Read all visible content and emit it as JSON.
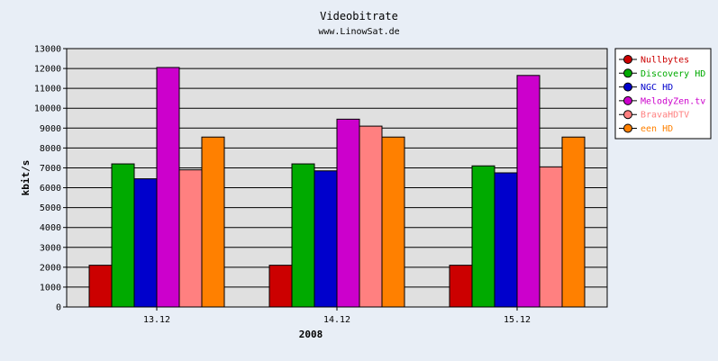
{
  "chart_data": {
    "type": "bar",
    "title": "Videobitrate",
    "subtitle": "www.LinowSat.de",
    "xlabel": "2008",
    "ylabel": "kbit/s",
    "ylim": [
      0,
      13000
    ],
    "ytick_step": 1000,
    "categories": [
      "13.12",
      "14.12",
      "15.12"
    ],
    "grid": true,
    "legend_position": "top-right",
    "series": [
      {
        "name": "Nullbytes",
        "color": "#cc0000",
        "label_color": "#cc0000",
        "values": [
          2100,
          2100,
          2100
        ]
      },
      {
        "name": "Discovery HD",
        "color": "#00aa00",
        "label_color": "#00aa00",
        "values": [
          7200,
          7200,
          7100
        ]
      },
      {
        "name": "NGC HD",
        "color": "#0000cc",
        "label_color": "#0000cc",
        "values": [
          6450,
          6850,
          6750
        ]
      },
      {
        "name": "MelodyZen.tv",
        "color": "#cc00cc",
        "label_color": "#cc00cc",
        "values": [
          12050,
          9450,
          11650
        ]
      },
      {
        "name": "BravaHDTV",
        "color": "#ff8080",
        "label_color": "#ff8080",
        "values": [
          6900,
          9100,
          7050
        ]
      },
      {
        "name": "een HD",
        "color": "#ff8000",
        "label_color": "#ff8000",
        "values": [
          8550,
          8550,
          8550
        ]
      }
    ]
  }
}
